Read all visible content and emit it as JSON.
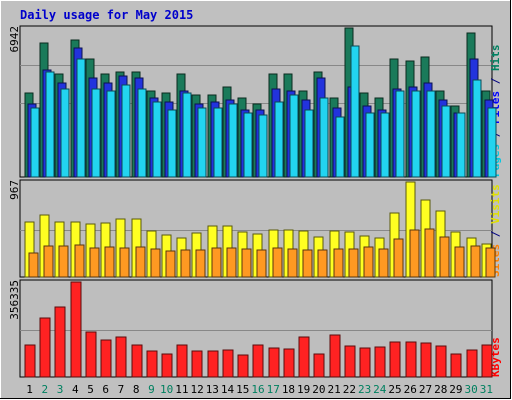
{
  "chart_data": {
    "type": "bar",
    "title": "Daily usage for May 2015",
    "categories": [
      "1",
      "2",
      "3",
      "4",
      "5",
      "6",
      "7",
      "8",
      "9",
      "10",
      "11",
      "12",
      "13",
      "14",
      "15",
      "16",
      "17",
      "18",
      "19",
      "20",
      "21",
      "22",
      "23",
      "24",
      "25",
      "26",
      "27",
      "28",
      "29",
      "30",
      "31"
    ],
    "weekend_days": [
      "2",
      "3",
      "9",
      "10",
      "16",
      "17",
      "23",
      "24",
      "30",
      "31"
    ],
    "panels": [
      {
        "id": "hits-files-pages",
        "max_label": "6942",
        "max": 6942,
        "right_labels": [
          {
            "text": "Pages",
            "color": "#00c8e0"
          },
          {
            "text": " / ",
            "color": "#000080"
          },
          {
            "text": "Files",
            "color": "#0000ff"
          },
          {
            "text": " / ",
            "color": "#000080"
          },
          {
            "text": "Hits",
            "color": "#008060"
          }
        ],
        "series": [
          {
            "name": "Hits",
            "color": "#1a7a5a",
            "values": [
              3900,
              6250,
              4800,
              6400,
              5500,
              4800,
              4900,
              4900,
              4000,
              3900,
              4800,
              3800,
              3800,
              4200,
              3700,
              3400,
              4800,
              4800,
              4000,
              4900,
              3700,
              6942,
              3900,
              3700,
              5500,
              5400,
              5600,
              4000,
              3300,
              6700,
              4000
            ]
          },
          {
            "name": "Files",
            "color": "#2233dd",
            "values": [
              3400,
              5000,
              4400,
              6000,
              4600,
              4400,
              4700,
              4600,
              3700,
              3500,
              4000,
              3400,
              3500,
              3600,
              3100,
              3100,
              4100,
              4000,
              3600,
              4600,
              3200,
              4200,
              3300,
              3100,
              4100,
              4200,
              4400,
              3600,
              3000,
              5500,
              3600
            ]
          },
          {
            "name": "Pages",
            "color": "#22d4f0",
            "values": [
              3200,
              4900,
              4100,
              5500,
              4100,
              4000,
              4300,
              4100,
              3500,
              3100,
              3900,
              3200,
              3200,
              3400,
              3000,
              2900,
              3500,
              3800,
              3100,
              3700,
              2800,
              6100,
              3000,
              3000,
              4000,
              4000,
              4000,
              3300,
              3000,
              4500,
              3200
            ]
          }
        ]
      },
      {
        "id": "visits-sites",
        "max_label": "967",
        "max": 967,
        "right_labels": [
          {
            "text": "Sites",
            "color": "#ff8000"
          },
          {
            "text": " / ",
            "color": "#000080"
          },
          {
            "text": "Visits",
            "color": "#e0e000"
          }
        ],
        "series": [
          {
            "name": "Visits",
            "color": "#ffff22",
            "values": [
              560,
              630,
              560,
              560,
              540,
              550,
              590,
              590,
              470,
              430,
              400,
              450,
              520,
              520,
              460,
              440,
              480,
              480,
              470,
              410,
              470,
              460,
              420,
              400,
              650,
              967,
              780,
              670,
              460,
              400,
              340
            ]
          },
          {
            "name": "Sites",
            "color": "#ff9922",
            "values": [
              240,
              320,
              320,
              330,
              300,
              310,
              300,
              310,
              280,
              260,
              270,
              270,
              300,
              300,
              280,
              270,
              300,
              290,
              270,
              270,
              290,
              280,
              310,
              290,
              390,
              480,
              490,
              410,
              310,
              320,
              300
            ]
          }
        ]
      },
      {
        "id": "kbytes",
        "max_label": "356335",
        "max": 356335,
        "right_labels": [
          {
            "text": "KBytes",
            "color": "#ff0000"
          }
        ],
        "series": [
          {
            "name": "KBytes",
            "color": "#ff2222",
            "values": [
              120000,
              220000,
              264000,
              356335,
              170000,
              140000,
              150000,
              120000,
              96000,
              86000,
              120000,
              97000,
              97000,
              103000,
              83000,
              120000,
              107000,
              104000,
              150000,
              88000,
              156000,
              117000,
              107000,
              113000,
              130000,
              130000,
              127000,
              117000,
              88000,
              103000,
              120000
            ]
          }
        ]
      }
    ]
  }
}
